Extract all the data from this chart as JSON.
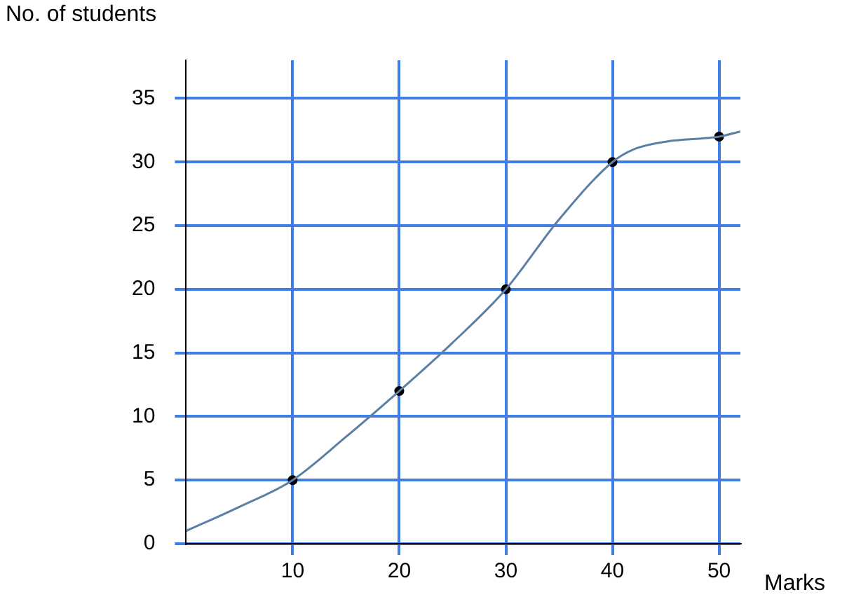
{
  "chart_data": {
    "type": "line",
    "xlabel": "Marks",
    "ylabel": "No. of students",
    "xlim": [
      0,
      52
    ],
    "ylim": [
      0,
      38
    ],
    "xticks": [
      10,
      20,
      30,
      40,
      50
    ],
    "yticks": [
      0,
      5,
      10,
      15,
      20,
      25,
      30,
      35
    ],
    "grid": true,
    "series": [
      {
        "color": "#5b7fa6",
        "marker": "none",
        "x": [
          0,
          5,
          10,
          15,
          20,
          25,
          30,
          35,
          40,
          42,
          45,
          50,
          52
        ],
        "values": [
          1,
          2.9,
          5,
          8.4,
          12,
          15.8,
          20,
          25.5,
          30,
          31,
          31.6,
          32,
          32.4
        ]
      },
      {
        "type": "scatter",
        "color": "#000000",
        "marker": "circle",
        "x": [
          10,
          20,
          30,
          40,
          50
        ],
        "values": [
          5,
          12,
          20,
          30,
          32
        ]
      }
    ]
  }
}
